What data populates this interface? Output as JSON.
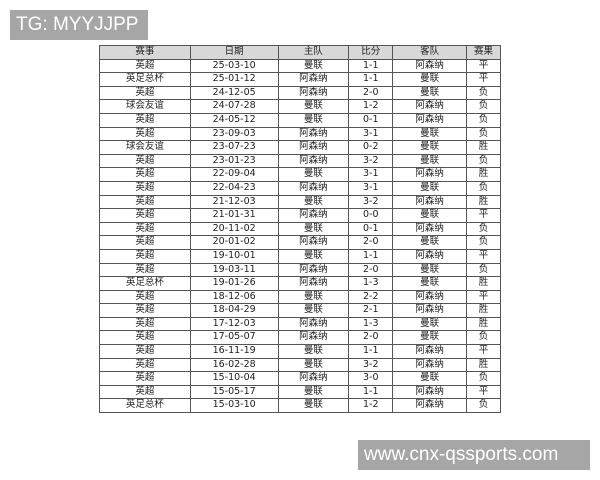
{
  "watermark_top": "TG: MYYJJPP",
  "watermark_bottom": "www.cnx-qssports.com",
  "table": {
    "headers": [
      "赛事",
      "日期",
      "主队",
      "比分",
      "客队",
      "赛果"
    ],
    "rows": [
      [
        "英超",
        "25-03-10",
        "曼联",
        "1-1",
        "阿森纳",
        "平"
      ],
      [
        "英足总杯",
        "25-01-12",
        "阿森纳",
        "1-1",
        "曼联",
        "平"
      ],
      [
        "英超",
        "24-12-05",
        "阿森纳",
        "2-0",
        "曼联",
        "负"
      ],
      [
        "球会友谊",
        "24-07-28",
        "曼联",
        "1-2",
        "阿森纳",
        "负"
      ],
      [
        "英超",
        "24-05-12",
        "曼联",
        "0-1",
        "阿森纳",
        "负"
      ],
      [
        "英超",
        "23-09-03",
        "阿森纳",
        "3-1",
        "曼联",
        "负"
      ],
      [
        "球会友谊",
        "23-07-23",
        "阿森纳",
        "0-2",
        "曼联",
        "胜"
      ],
      [
        "英超",
        "23-01-23",
        "阿森纳",
        "3-2",
        "曼联",
        "负"
      ],
      [
        "英超",
        "22-09-04",
        "曼联",
        "3-1",
        "阿森纳",
        "胜"
      ],
      [
        "英超",
        "22-04-23",
        "阿森纳",
        "3-1",
        "曼联",
        "负"
      ],
      [
        "英超",
        "21-12-03",
        "曼联",
        "3-2",
        "阿森纳",
        "胜"
      ],
      [
        "英超",
        "21-01-31",
        "阿森纳",
        "0-0",
        "曼联",
        "平"
      ],
      [
        "英超",
        "20-11-02",
        "曼联",
        "0-1",
        "阿森纳",
        "负"
      ],
      [
        "英超",
        "20-01-02",
        "阿森纳",
        "2-0",
        "曼联",
        "负"
      ],
      [
        "英超",
        "19-10-01",
        "曼联",
        "1-1",
        "阿森纳",
        "平"
      ],
      [
        "英超",
        "19-03-11",
        "阿森纳",
        "2-0",
        "曼联",
        "负"
      ],
      [
        "英足总杯",
        "19-01-26",
        "阿森纳",
        "1-3",
        "曼联",
        "胜"
      ],
      [
        "英超",
        "18-12-06",
        "曼联",
        "2-2",
        "阿森纳",
        "平"
      ],
      [
        "英超",
        "18-04-29",
        "曼联",
        "2-1",
        "阿森纳",
        "胜"
      ],
      [
        "英超",
        "17-12-03",
        "阿森纳",
        "1-3",
        "曼联",
        "胜"
      ],
      [
        "英超",
        "17-05-07",
        "阿森纳",
        "2-0",
        "曼联",
        "负"
      ],
      [
        "英超",
        "16-11-19",
        "曼联",
        "1-1",
        "阿森纳",
        "平"
      ],
      [
        "英超",
        "16-02-28",
        "曼联",
        "3-2",
        "阿森纳",
        "胜"
      ],
      [
        "英超",
        "15-10-04",
        "阿森纳",
        "3-0",
        "曼联",
        "负"
      ],
      [
        "英超",
        "15-05-17",
        "曼联",
        "1-1",
        "阿森纳",
        "平"
      ],
      [
        "英足总杯",
        "15-03-10",
        "曼联",
        "1-2",
        "阿森纳",
        "负"
      ]
    ]
  }
}
